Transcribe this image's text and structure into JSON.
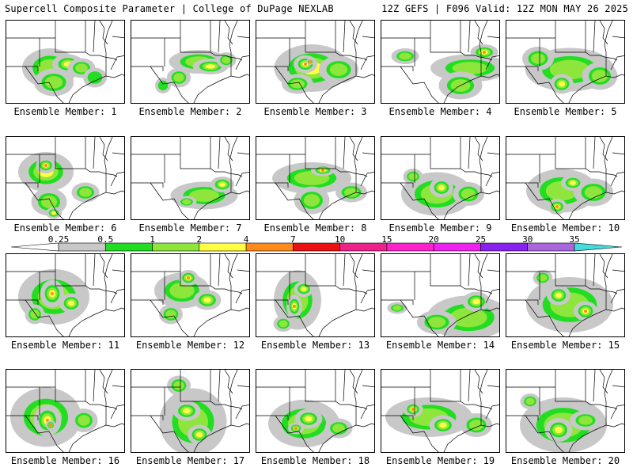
{
  "header": {
    "title": "Supercell Composite Parameter | College of DuPage NEXLAB",
    "run_info": "12Z GEFS | F096 Valid: 12Z MON MAY 26 2025"
  },
  "members": [
    {
      "label": "Ensemble Member: 1"
    },
    {
      "label": "Ensemble Member: 2"
    },
    {
      "label": "Ensemble Member: 3"
    },
    {
      "label": "Ensemble Member: 4"
    },
    {
      "label": "Ensemble Member: 5"
    },
    {
      "label": "Ensemble Member: 6"
    },
    {
      "label": "Ensemble Member: 7"
    },
    {
      "label": "Ensemble Member: 8"
    },
    {
      "label": "Ensemble Member: 9"
    },
    {
      "label": "Ensemble Member: 10"
    },
    {
      "label": "Ensemble Member: 11"
    },
    {
      "label": "Ensemble Member: 12"
    },
    {
      "label": "Ensemble Member: 13"
    },
    {
      "label": "Ensemble Member: 14"
    },
    {
      "label": "Ensemble Member: 15"
    },
    {
      "label": "Ensemble Member: 16"
    },
    {
      "label": "Ensemble Member: 17"
    },
    {
      "label": "Ensemble Member: 18"
    },
    {
      "label": "Ensemble Member: 19"
    },
    {
      "label": "Ensemble Member: 20"
    }
  ],
  "colorbar": {
    "ticks": [
      "0.25",
      "0.5",
      "1",
      "2",
      "4",
      "7",
      "10",
      "15",
      "20",
      "25",
      "30",
      "35"
    ],
    "colors": [
      "#c8c8c8",
      "#22dd22",
      "#8ee63c",
      "#ffff44",
      "#ff8c1a",
      "#ee1111",
      "#ee2288",
      "#ff22cc",
      "#ee22ee",
      "#8822ee",
      "#aa66dd",
      "#44dddd"
    ]
  }
}
